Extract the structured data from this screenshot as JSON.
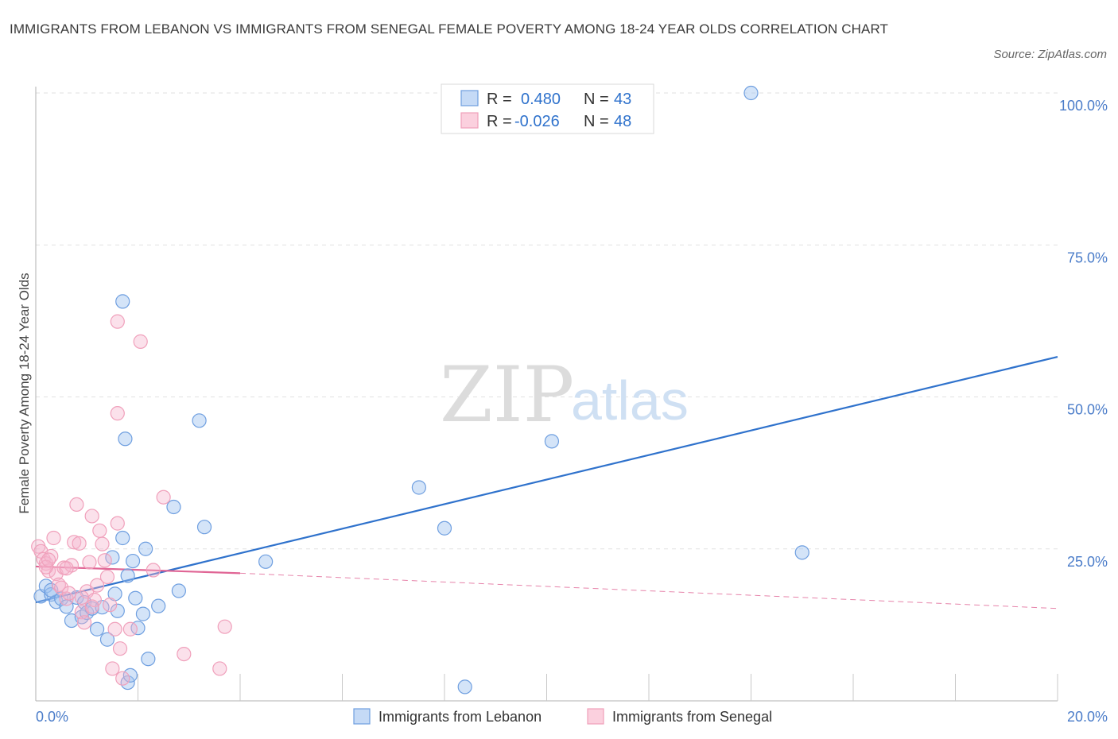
{
  "title": "IMMIGRANTS FROM LEBANON VS IMMIGRANTS FROM SENEGAL FEMALE POVERTY AMONG 18-24 YEAR OLDS CORRELATION CHART",
  "source": "Source: ZipAtlas.com",
  "watermark": {
    "zip": "ZIP",
    "atlas": "atlas"
  },
  "colors": {
    "lebanon": "#6f9fe0",
    "lebanon_line": "#2f72cc",
    "senegal": "#f0a0bb",
    "senegal_line": "#e06595",
    "tick_text": "#4a7cc9"
  },
  "legend_top": [
    {
      "r_label": "R =",
      "r_value": "0.480",
      "n_label": "N =",
      "n_value": "43"
    },
    {
      "r_label": "R =",
      "r_value": "-0.026",
      "n_label": "N =",
      "n_value": "48"
    }
  ],
  "chart_data": {
    "type": "scatter",
    "title": "IMMIGRANTS FROM LEBANON VS IMMIGRANTS FROM SENEGAL FEMALE POVERTY AMONG 18-24 YEAR OLDS CORRELATION CHART",
    "xlabel": "",
    "ylabel": "Female Poverty Among 18-24 Year Olds",
    "xlim": [
      0,
      20
    ],
    "ylim": [
      0,
      100
    ],
    "x_tick_labels": [
      "0.0%",
      "20.0%"
    ],
    "y_ticks": [
      25,
      50,
      75,
      100
    ],
    "y_tick_labels": [
      "25.0%",
      "50.0%",
      "75.0%",
      "100.0%"
    ],
    "grid": true,
    "legend_position": "bottom-center",
    "series": [
      {
        "name": "Immigrants from Lebanon",
        "R": 0.48,
        "N": 43,
        "trend": {
          "x": [
            0,
            20
          ],
          "y": [
            16.2,
            56.6
          ],
          "style": "solid"
        },
        "points": [
          [
            0.1,
            17.2
          ],
          [
            0.2,
            18.9
          ],
          [
            0.3,
            17.5
          ],
          [
            0.4,
            16.3
          ],
          [
            0.5,
            16.8
          ],
          [
            0.6,
            15.5
          ],
          [
            0.7,
            13.2
          ],
          [
            0.8,
            17.0
          ],
          [
            0.9,
            13.8
          ],
          [
            0.95,
            16.2
          ],
          [
            1.0,
            14.5
          ],
          [
            1.1,
            15.2
          ],
          [
            1.2,
            11.8
          ],
          [
            1.3,
            15.4
          ],
          [
            1.4,
            10.1
          ],
          [
            1.5,
            23.6
          ],
          [
            1.55,
            17.6
          ],
          [
            1.6,
            14.8
          ],
          [
            1.7,
            26.8
          ],
          [
            1.8,
            3.0
          ],
          [
            1.85,
            4.2
          ],
          [
            1.7,
            65.7
          ],
          [
            1.75,
            43.1
          ],
          [
            1.8,
            20.6
          ],
          [
            1.9,
            23.0
          ],
          [
            1.95,
            16.9
          ],
          [
            2.0,
            12.0
          ],
          [
            2.1,
            14.3
          ],
          [
            2.15,
            25.0
          ],
          [
            2.2,
            6.9
          ],
          [
            2.4,
            15.6
          ],
          [
            2.7,
            31.9
          ],
          [
            2.8,
            18.1
          ],
          [
            3.2,
            46.1
          ],
          [
            3.3,
            28.6
          ],
          [
            4.5,
            22.9
          ],
          [
            7.5,
            35.1
          ],
          [
            8.0,
            28.4
          ],
          [
            8.4,
            2.3
          ],
          [
            10.1,
            42.7
          ],
          [
            14.0,
            100.0
          ],
          [
            15.0,
            24.4
          ],
          [
            0.3,
            18.2
          ]
        ]
      },
      {
        "name": "Immigrants from Senegal",
        "R": -0.026,
        "N": 48,
        "trend": {
          "x": [
            0,
            4
          ],
          "y": [
            22.1,
            21.0
          ],
          "style": "solid",
          "extension": {
            "x": [
              4,
              20
            ],
            "y": [
              21.0,
              15.2
            ],
            "style": "dashed"
          }
        },
        "points": [
          [
            0.05,
            25.4
          ],
          [
            0.1,
            24.6
          ],
          [
            0.15,
            23.3
          ],
          [
            0.2,
            22.6
          ],
          [
            0.25,
            21.4
          ],
          [
            0.3,
            23.8
          ],
          [
            0.35,
            26.8
          ],
          [
            0.4,
            20.9
          ],
          [
            0.45,
            19.1
          ],
          [
            0.5,
            18.6
          ],
          [
            0.55,
            21.9
          ],
          [
            0.6,
            16.8
          ],
          [
            0.65,
            17.7
          ],
          [
            0.7,
            22.3
          ],
          [
            0.75,
            26.1
          ],
          [
            0.8,
            32.3
          ],
          [
            0.85,
            25.9
          ],
          [
            0.9,
            14.6
          ],
          [
            0.95,
            12.9
          ],
          [
            1.0,
            18.0
          ],
          [
            1.05,
            22.8
          ],
          [
            1.1,
            30.4
          ],
          [
            1.15,
            16.6
          ],
          [
            1.2,
            19.0
          ],
          [
            1.25,
            28.0
          ],
          [
            1.3,
            25.8
          ],
          [
            1.35,
            23.1
          ],
          [
            1.4,
            20.4
          ],
          [
            1.45,
            15.8
          ],
          [
            1.5,
            5.3
          ],
          [
            1.55,
            11.8
          ],
          [
            1.6,
            29.2
          ],
          [
            1.65,
            8.6
          ],
          [
            1.7,
            3.7
          ],
          [
            1.6,
            62.4
          ],
          [
            1.6,
            47.3
          ],
          [
            2.05,
            59.1
          ],
          [
            1.85,
            11.8
          ],
          [
            2.3,
            21.5
          ],
          [
            2.5,
            33.5
          ],
          [
            2.9,
            7.7
          ],
          [
            3.6,
            5.3
          ],
          [
            3.7,
            12.2
          ],
          [
            0.2,
            22.0
          ],
          [
            0.25,
            23.2
          ],
          [
            0.6,
            21.8
          ],
          [
            0.9,
            17.0
          ],
          [
            1.1,
            15.5
          ]
        ]
      }
    ]
  }
}
